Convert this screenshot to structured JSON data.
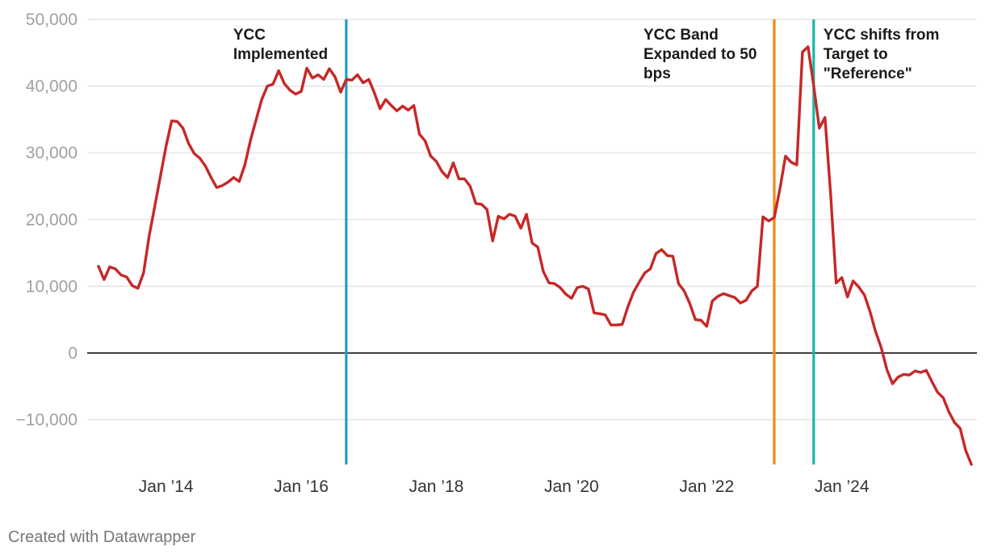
{
  "chart_data": {
    "type": "line",
    "title": "",
    "xlabel": "",
    "ylabel": "",
    "ylim": [
      -17000,
      50000
    ],
    "xlim": [
      "2012-11-01",
      "2025-12-31"
    ],
    "grid": true,
    "y_ticks": [
      {
        "value": 50000,
        "label": "50,000"
      },
      {
        "value": 40000,
        "label": "40,000"
      },
      {
        "value": 30000,
        "label": "30,000"
      },
      {
        "value": 20000,
        "label": "20,000"
      },
      {
        "value": 10000,
        "label": "10,000"
      },
      {
        "value": 0,
        "label": "0"
      },
      {
        "value": -10000,
        "label": "−10,000"
      }
    ],
    "x_ticks": [
      {
        "date": "2014-01-01",
        "label": "Jan ’14"
      },
      {
        "date": "2016-01-01",
        "label": "Jan ’16"
      },
      {
        "date": "2018-01-01",
        "label": "Jan ’18"
      },
      {
        "date": "2020-01-01",
        "label": "Jan ’20"
      },
      {
        "date": "2022-01-01",
        "label": "Jan ’22"
      },
      {
        "date": "2024-01-01",
        "label": "Jan ’24"
      }
    ],
    "colors": {
      "series": "#c62828",
      "ycc_implemented": "#1a9fd0",
      "ycc_band": "#f08c10",
      "ycc_shift": "#16b8a6",
      "grid": "#e0e0e0",
      "zero_line": "#000000"
    },
    "annotations": [
      {
        "id": "ycc_implemented",
        "date": "2016-09-01",
        "lines": [
          "YCC",
          "Implemented"
        ],
        "text_side": "left"
      },
      {
        "id": "ycc_band",
        "date": "2023-01-01",
        "lines": [
          "YCC Band",
          "Expanded to 50",
          "bps"
        ],
        "text_side": "left"
      },
      {
        "id": "ycc_shift",
        "date": "2023-08-01",
        "lines": [
          "YCC shifts from",
          "Target to",
          "\"Reference\""
        ],
        "text_side": "right"
      }
    ],
    "series": [
      {
        "points": [
          [
            "2013-01",
            13000
          ],
          [
            "2013-02",
            11000
          ],
          [
            "2013-03",
            12900
          ],
          [
            "2013-04",
            12600
          ],
          [
            "2013-05",
            11700
          ],
          [
            "2013-06",
            11400
          ],
          [
            "2013-07",
            10100
          ],
          [
            "2013-08",
            9700
          ],
          [
            "2013-09",
            12000
          ],
          [
            "2013-10",
            17500
          ],
          [
            "2013-11",
            22000
          ],
          [
            "2013-12",
            26500
          ],
          [
            "2014-01",
            31000
          ],
          [
            "2014-02",
            34800
          ],
          [
            "2014-03",
            34700
          ],
          [
            "2014-04",
            33700
          ],
          [
            "2014-05",
            31400
          ],
          [
            "2014-06",
            29900
          ],
          [
            "2014-07",
            29200
          ],
          [
            "2014-08",
            28000
          ],
          [
            "2014-09",
            26300
          ],
          [
            "2014-10",
            24800
          ],
          [
            "2014-11",
            25100
          ],
          [
            "2014-12",
            25600
          ],
          [
            "2015-01",
            26300
          ],
          [
            "2015-02",
            25700
          ],
          [
            "2015-03",
            28200
          ],
          [
            "2015-04",
            31900
          ],
          [
            "2015-05",
            35000
          ],
          [
            "2015-06",
            38000
          ],
          [
            "2015-07",
            40000
          ],
          [
            "2015-08",
            40300
          ],
          [
            "2015-09",
            42300
          ],
          [
            "2015-10",
            40400
          ],
          [
            "2015-11",
            39400
          ],
          [
            "2015-12",
            38800
          ],
          [
            "2016-01",
            39200
          ],
          [
            "2016-02",
            42700
          ],
          [
            "2016-03",
            41200
          ],
          [
            "2016-04",
            41700
          ],
          [
            "2016-05",
            41000
          ],
          [
            "2016-06",
            42600
          ],
          [
            "2016-07",
            41400
          ],
          [
            "2016-08",
            39100
          ],
          [
            "2016-09",
            41000
          ],
          [
            "2016-10",
            40900
          ],
          [
            "2016-11",
            41700
          ],
          [
            "2016-12",
            40500
          ],
          [
            "2017-01",
            41000
          ],
          [
            "2017-02",
            39000
          ],
          [
            "2017-03",
            36600
          ],
          [
            "2017-04",
            38000
          ],
          [
            "2017-05",
            37100
          ],
          [
            "2017-06",
            36300
          ],
          [
            "2017-07",
            37000
          ],
          [
            "2017-08",
            36400
          ],
          [
            "2017-09",
            37100
          ],
          [
            "2017-10",
            32800
          ],
          [
            "2017-11",
            31800
          ],
          [
            "2017-12",
            29500
          ],
          [
            "2018-01",
            28700
          ],
          [
            "2018-02",
            27200
          ],
          [
            "2018-03",
            26300
          ],
          [
            "2018-04",
            28500
          ],
          [
            "2018-05",
            26100
          ],
          [
            "2018-06",
            26100
          ],
          [
            "2018-07",
            25000
          ],
          [
            "2018-08",
            22400
          ],
          [
            "2018-09",
            22300
          ],
          [
            "2018-10",
            21500
          ],
          [
            "2018-11",
            16800
          ],
          [
            "2018-12",
            20500
          ],
          [
            "2019-01",
            20100
          ],
          [
            "2019-02",
            20800
          ],
          [
            "2019-03",
            20500
          ],
          [
            "2019-04",
            18700
          ],
          [
            "2019-05",
            20800
          ],
          [
            "2019-06",
            16500
          ],
          [
            "2019-07",
            15900
          ],
          [
            "2019-08",
            12200
          ],
          [
            "2019-09",
            10500
          ],
          [
            "2019-10",
            10400
          ],
          [
            "2019-11",
            9800
          ],
          [
            "2019-12",
            8800
          ],
          [
            "2020-01",
            8200
          ],
          [
            "2020-02",
            9800
          ],
          [
            "2020-03",
            10000
          ],
          [
            "2020-04",
            9600
          ],
          [
            "2020-05",
            6000
          ],
          [
            "2020-06",
            5900
          ],
          [
            "2020-07",
            5700
          ],
          [
            "2020-08",
            4200
          ],
          [
            "2020-09",
            4200
          ],
          [
            "2020-10",
            4300
          ],
          [
            "2020-11",
            6900
          ],
          [
            "2020-12",
            9100
          ],
          [
            "2021-01",
            10600
          ],
          [
            "2021-02",
            12000
          ],
          [
            "2021-03",
            12600
          ],
          [
            "2021-04",
            14900
          ],
          [
            "2021-05",
            15500
          ],
          [
            "2021-06",
            14600
          ],
          [
            "2021-07",
            14500
          ],
          [
            "2021-08",
            10400
          ],
          [
            "2021-09",
            9300
          ],
          [
            "2021-10",
            7400
          ],
          [
            "2021-11",
            5000
          ],
          [
            "2021-12",
            4900
          ],
          [
            "2022-01",
            4000
          ],
          [
            "2022-02",
            7800
          ],
          [
            "2022-03",
            8500
          ],
          [
            "2022-04",
            8900
          ],
          [
            "2022-05",
            8600
          ],
          [
            "2022-06",
            8300
          ],
          [
            "2022-07",
            7500
          ],
          [
            "2022-08",
            7900
          ],
          [
            "2022-09",
            9300
          ],
          [
            "2022-10",
            10000
          ],
          [
            "2022-11",
            20400
          ],
          [
            "2022-12",
            19800
          ],
          [
            "2023-01",
            20300
          ],
          [
            "2023-02",
            24600
          ],
          [
            "2023-03",
            29500
          ],
          [
            "2023-04",
            28600
          ],
          [
            "2023-05",
            28200
          ],
          [
            "2023-06",
            45100
          ],
          [
            "2023-07",
            45900
          ],
          [
            "2023-08",
            40100
          ],
          [
            "2023-09",
            33700
          ],
          [
            "2023-10",
            35300
          ],
          [
            "2023-11",
            24000
          ],
          [
            "2023-12",
            10500
          ],
          [
            "2024-01",
            11300
          ],
          [
            "2024-02",
            8400
          ],
          [
            "2024-03",
            10800
          ],
          [
            "2024-04",
            9900
          ],
          [
            "2024-05",
            8700
          ],
          [
            "2024-06",
            6200
          ],
          [
            "2024-07",
            3200
          ],
          [
            "2024-08",
            800
          ],
          [
            "2024-09",
            -2500
          ],
          [
            "2024-10",
            -4600
          ],
          [
            "2024-11",
            -3600
          ],
          [
            "2024-12",
            -3200
          ],
          [
            "2025-01",
            -3300
          ],
          [
            "2025-02",
            -2700
          ],
          [
            "2025-03",
            -2900
          ],
          [
            "2025-04",
            -2600
          ],
          [
            "2025-05",
            -4300
          ],
          [
            "2025-06",
            -5900
          ],
          [
            "2025-07",
            -6700
          ],
          [
            "2025-08",
            -8800
          ],
          [
            "2025-09",
            -10400
          ],
          [
            "2025-10",
            -11300
          ],
          [
            "2025-11",
            -14600
          ],
          [
            "2025-12",
            -16700
          ]
        ]
      }
    ]
  },
  "footer": {
    "credit": "Created with Datawrapper"
  }
}
